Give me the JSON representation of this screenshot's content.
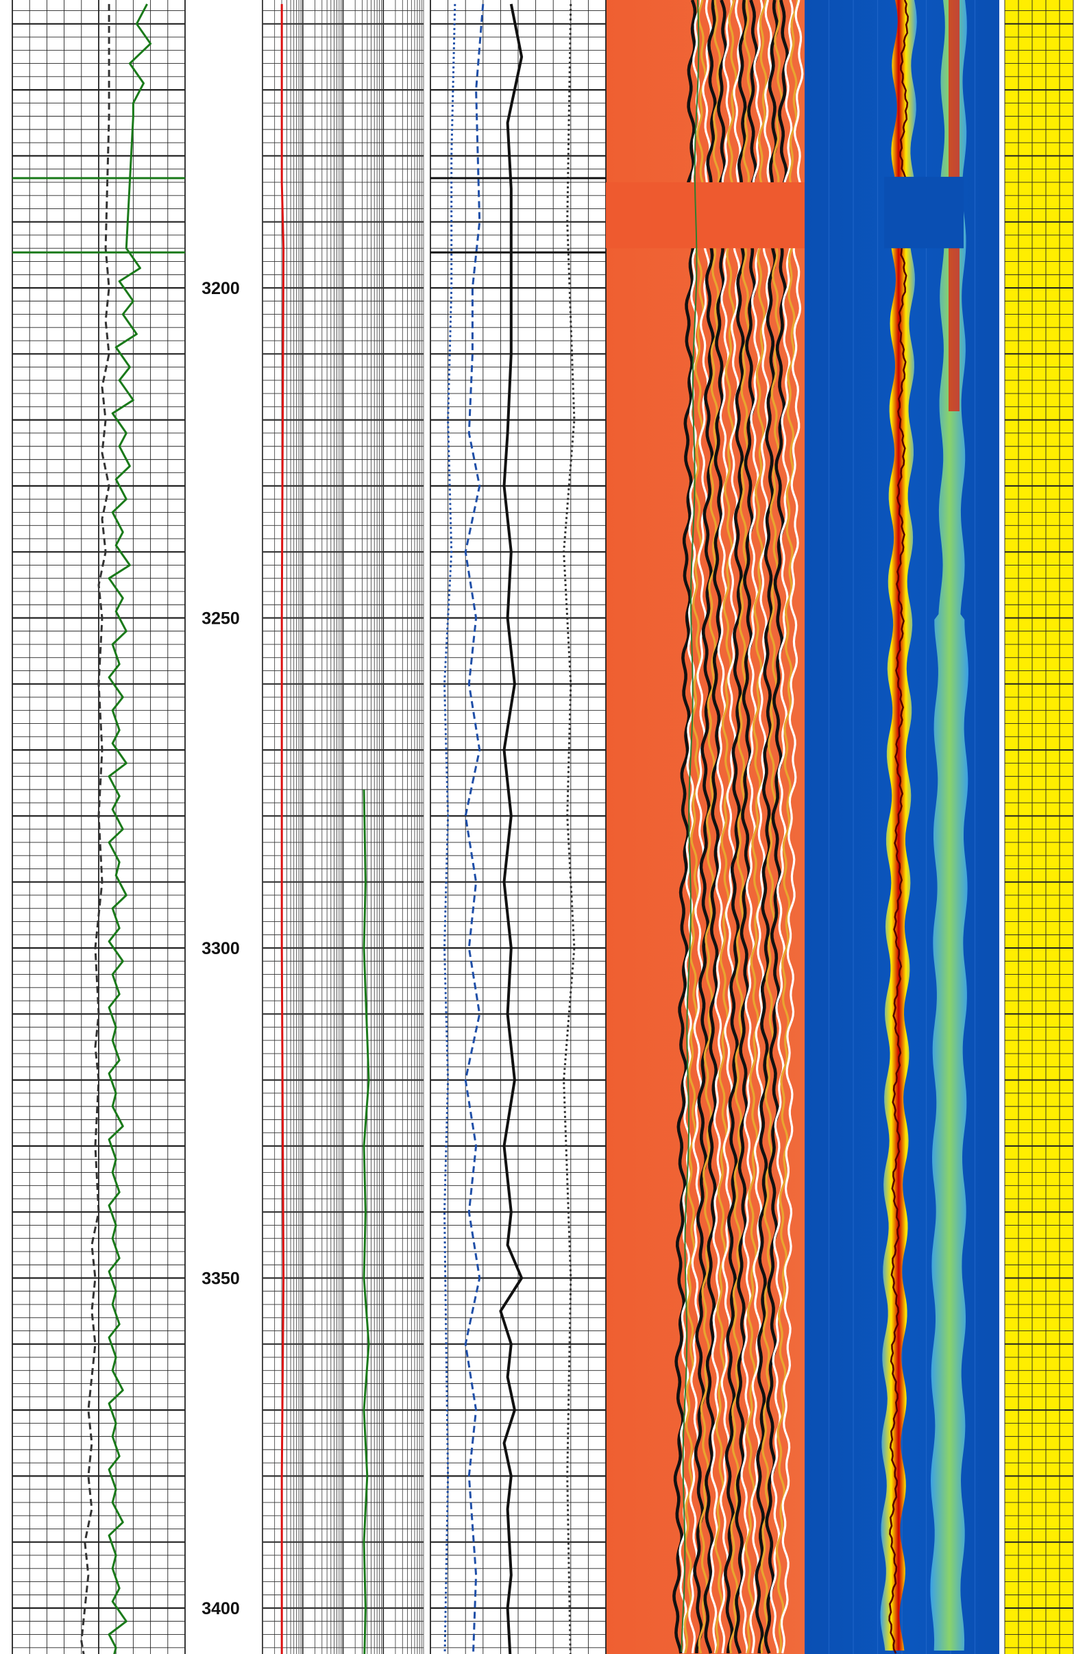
{
  "chart_data": {
    "type": "line",
    "title": "",
    "xlabel": "",
    "ylabel": "",
    "y_axis": "depth",
    "ylim": [
      3157,
      3410
    ],
    "depth_ticks": [
      3200,
      3250,
      3300,
      3350,
      3400
    ],
    "grid": true,
    "legend": "none",
    "scanner_gap_depth_range": [
      3184,
      3194
    ],
    "tracks": [
      {
        "name": "track-1",
        "kind": "curves",
        "series": [
          {
            "color": "#1a7a1a",
            "dash": "solid",
            "x": [
              0.78,
              0.72,
              0.8,
              0.68,
              0.76,
              0.7,
              0.7,
              0.66,
              0.74,
              0.62,
              0.7,
              0.64,
              0.72,
              0.6,
              0.68,
              0.62,
              0.7,
              0.58,
              0.66,
              0.62,
              0.68,
              0.6,
              0.66,
              0.58,
              0.64,
              0.6,
              0.68,
              0.56,
              0.64,
              0.6,
              0.66,
              0.58,
              0.62,
              0.56,
              0.64,
              0.58,
              0.62,
              0.58,
              0.66,
              0.56,
              0.62,
              0.58,
              0.64,
              0.56,
              0.62,
              0.6,
              0.66,
              0.58,
              0.62,
              0.56,
              0.64,
              0.58,
              0.62,
              0.56,
              0.6,
              0.58,
              0.62,
              0.56,
              0.6,
              0.58,
              0.64,
              0.56,
              0.6,
              0.58,
              0.62,
              0.56,
              0.6,
              0.58,
              0.62,
              0.56,
              0.6,
              0.58,
              0.62,
              0.56,
              0.6,
              0.58,
              0.64,
              0.56,
              0.6,
              0.58,
              0.62,
              0.56,
              0.6,
              0.58,
              0.64,
              0.56,
              0.6,
              0.58,
              0.62,
              0.58,
              0.66,
              0.56,
              0.6,
              0.58,
              0.62,
              0.56,
              0.6,
              0.58,
              0.62,
              0.56,
              0.6,
              0.58,
              0.62,
              0.56,
              0.64,
              0.6,
              0.7,
              0.62,
              0.88,
              0.64,
              0.96,
              0.7
            ],
            "depths": [
              3157,
              3160,
              3163,
              3166,
              3169,
              3172,
              3174,
              3194,
              3197,
              3199,
              3202,
              3204,
              3207,
              3209,
              3212,
              3214,
              3217,
              3219,
              3222,
              3224,
              3227,
              3229,
              3232,
              3234,
              3237,
              3239,
              3242,
              3244,
              3247,
              3249,
              3252,
              3254,
              3257,
              3259,
              3262,
              3264,
              3267,
              3269,
              3272,
              3274,
              3277,
              3279,
              3282,
              3284,
              3287,
              3289,
              3292,
              3294,
              3297,
              3299,
              3302,
              3304,
              3307,
              3309,
              3312,
              3314,
              3317,
              3319,
              3322,
              3324,
              3327,
              3329,
              3332,
              3334,
              3337,
              3339,
              3342,
              3344,
              3347,
              3349,
              3352,
              3354,
              3357,
              3359,
              3362,
              3364,
              3367,
              3369,
              3372,
              3374,
              3377,
              3379,
              3382,
              3384,
              3387,
              3389,
              3392,
              3394,
              3397,
              3399,
              3402,
              3404,
              3406,
              3408,
              3410,
              3410,
              3410,
              3410,
              3410,
              3410,
              3410,
              3410,
              3410,
              3410,
              3410,
              3410,
              3410,
              3410,
              3410,
              3410,
              3410,
              3410,
              3410,
              3410
            ]
          },
          {
            "color": "#333333",
            "dash": "dashed",
            "x": [
              0.56,
              0.56,
              0.54,
              0.56,
              0.54,
              0.56,
              0.52,
              0.54,
              0.52,
              0.56,
              0.52,
              0.54,
              0.5,
              0.52,
              0.5,
              0.52,
              0.5,
              0.52,
              0.48,
              0.5,
              0.48,
              0.5,
              0.48,
              0.5,
              0.46,
              0.48,
              0.46,
              0.48,
              0.46,
              0.44,
              0.46,
              0.44,
              0.46,
              0.42,
              0.44,
              0.42,
              0.4,
              0.42,
              0.4
            ],
            "depths": [
              3157,
              3174,
              3194,
              3200,
              3205,
              3210,
              3215,
              3220,
              3225,
              3230,
              3235,
              3240,
              3245,
              3250,
              3260,
              3270,
              3280,
              3290,
              3300,
              3310,
              3315,
              3320,
              3330,
              3340,
              3345,
              3350,
              3355,
              3360,
              3365,
              3370,
              3375,
              3380,
              3385,
              3390,
              3395,
              3400,
              3405,
              3408,
              3410
            ]
          }
        ]
      },
      {
        "name": "track-2",
        "kind": "curves",
        "series": [
          {
            "color": "#dd1111",
            "dash": "solid",
            "x": [
              0.12,
              0.12,
              0.13,
              0.12,
              0.12,
              0.13,
              0.12,
              0.12
            ],
            "depths": [
              3157,
              3184,
              3194,
              3250,
              3300,
              3350,
              3380,
              3410
            ]
          },
          {
            "color": "#1a7a1a",
            "dash": "solid",
            "x": [
              0.63,
              0.64,
              0.63,
              0.66,
              0.63,
              0.64,
              0.63,
              0.66,
              0.63,
              0.65,
              0.63,
              0.64,
              0.63
            ],
            "depths": [
              3276,
              3290,
              3300,
              3320,
              3330,
              3340,
              3350,
              3360,
              3370,
              3380,
              3390,
              3400,
              3410
            ]
          }
        ]
      },
      {
        "name": "track-3",
        "kind": "curves",
        "series": [
          {
            "color": "#111111",
            "dash": "solid",
            "x": [
              0.46,
              0.52,
              0.44,
              0.46,
              0.46,
              0.46,
              0.44,
              0.42,
              0.46,
              0.44,
              0.48,
              0.42,
              0.46,
              0.42,
              0.46,
              0.44,
              0.48,
              0.42,
              0.46,
              0.44,
              0.52,
              0.4,
              0.46,
              0.44,
              0.48,
              0.42,
              0.46,
              0.44,
              0.46,
              0.44,
              0.46
            ],
            "depths": [
              3157,
              3165,
              3175,
              3185,
              3195,
              3210,
              3222,
              3230,
              3240,
              3250,
              3260,
              3270,
              3280,
              3290,
              3300,
              3310,
              3320,
              3330,
              3340,
              3345,
              3350,
              3355,
              3360,
              3365,
              3370,
              3375,
              3380,
              3385,
              3395,
              3400,
              3410
            ]
          },
          {
            "color": "#1f4fa8",
            "dash": "dashed",
            "x": [
              0.3,
              0.26,
              0.28,
              0.24,
              0.24,
              0.22,
              0.28,
              0.2,
              0.26,
              0.22,
              0.28,
              0.2,
              0.26,
              0.22,
              0.28,
              0.2,
              0.26,
              0.22,
              0.28,
              0.2,
              0.26,
              0.22,
              0.26,
              0.24
            ],
            "depths": [
              3157,
              3170,
              3190,
              3200,
              3210,
              3222,
              3230,
              3240,
              3250,
              3260,
              3270,
              3280,
              3290,
              3300,
              3310,
              3320,
              3330,
              3340,
              3350,
              3360,
              3370,
              3380,
              3395,
              3410
            ]
          },
          {
            "color": "#1f4fa8",
            "dash": "dotted",
            "x": [
              0.14,
              0.12,
              0.12,
              0.1,
              0.12,
              0.08,
              0.1,
              0.08,
              0.1,
              0.08,
              0.1,
              0.08
            ],
            "depths": [
              3157,
              3180,
              3200,
              3220,
              3240,
              3260,
              3280,
              3300,
              3320,
              3340,
              3380,
              3410
            ]
          },
          {
            "color": "#333333",
            "dash": "dotted",
            "x": [
              0.8,
              0.78,
              0.82,
              0.76,
              0.8,
              0.78,
              0.82,
              0.76,
              0.8,
              0.78,
              0.8
            ],
            "depths": [
              3157,
              3190,
              3220,
              3240,
              3260,
              3280,
              3300,
              3320,
              3350,
              3380,
              3410
            ]
          }
        ]
      },
      {
        "name": "track-4",
        "kind": "waveform-image",
        "background": "#ee5a2f",
        "stripe_colors": [
          "#111111",
          "#ffffff",
          "#e8a530"
        ]
      },
      {
        "name": "track-5",
        "kind": "image-log",
        "colors": [
          "#0a4fb3",
          "#3aa0e8",
          "#7fd070",
          "#ffe600",
          "#ff3300",
          "#cc0000"
        ]
      },
      {
        "name": "track-6",
        "kind": "flag",
        "background": "#ffee00"
      }
    ]
  }
}
